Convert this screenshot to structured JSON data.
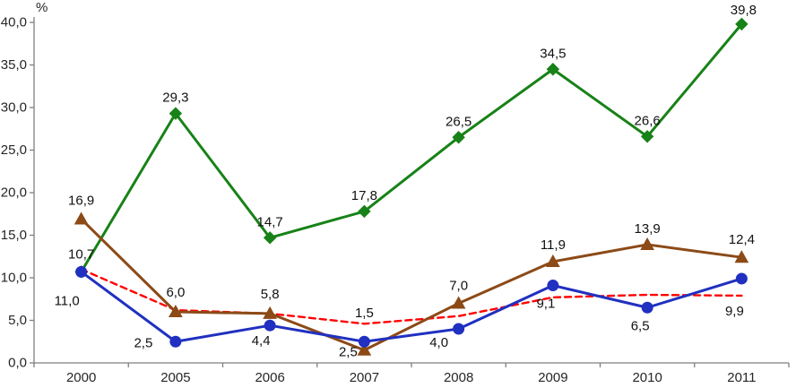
{
  "chart_data": {
    "type": "line",
    "title": "",
    "xlabel": "",
    "ylabel": "%",
    "ylim": [
      0,
      40
    ],
    "ytick_step": 5,
    "ytick_labels": [
      "0,0",
      "5,0",
      "10,0",
      "15,0",
      "20,0",
      "25,0",
      "30,0",
      "35,0",
      "40,0"
    ],
    "grid": false,
    "legend": "none",
    "decimal_separator": ",",
    "categories": [
      "2000",
      "2005",
      "2006",
      "2007",
      "2008",
      "2009",
      "2010",
      "2011"
    ],
    "series": [
      {
        "name": "red-dashed-trend-line",
        "color": "#FF0000",
        "marker": "none",
        "line": "dashed",
        "width": 2.4,
        "values": [
          11.0,
          6.2,
          5.8,
          4.6,
          5.5,
          7.7,
          8.0,
          7.9
        ],
        "labels": [
          "11,0",
          null,
          null,
          null,
          null,
          null,
          null,
          null
        ],
        "label_offsets": [
          [
            -16,
            40
          ],
          null,
          null,
          null,
          null,
          null,
          null,
          null
        ]
      },
      {
        "name": "green-diamond-series",
        "color": "#178217",
        "marker": "diamond",
        "line": "solid",
        "width": 3,
        "values": [
          10.7,
          29.3,
          14.7,
          17.8,
          26.5,
          34.5,
          26.6,
          39.8
        ],
        "labels": [
          null,
          "29,3",
          "14,7",
          "17,8",
          "26,5",
          "34,5",
          "26,6",
          "39,8"
        ],
        "label_offsets": [
          null,
          [
            0,
            -13
          ],
          [
            0,
            -13
          ],
          [
            0,
            -13
          ],
          [
            0,
            -13
          ],
          [
            0,
            -13
          ],
          [
            0,
            -13
          ],
          [
            2,
            -11
          ]
        ]
      },
      {
        "name": "brown-triangle-series",
        "color": "#8C4A17",
        "marker": "triangle",
        "line": "solid",
        "width": 3,
        "values": [
          16.9,
          6.0,
          5.8,
          1.5,
          7.0,
          11.9,
          13.9,
          12.4
        ],
        "labels": [
          "16,9",
          "6,0",
          "5,8",
          "1,5",
          "7,0",
          "11,9",
          "13,9",
          "12,4"
        ],
        "label_offsets": [
          [
            0,
            -16
          ],
          [
            0,
            -17
          ],
          [
            0,
            -17
          ],
          [
            0,
            -37
          ],
          [
            0,
            -15
          ],
          [
            0,
            -14
          ],
          [
            0,
            -13
          ],
          [
            0,
            -15
          ]
        ]
      },
      {
        "name": "blue-circle-series",
        "color": "#2030C0",
        "marker": "circle",
        "line": "solid",
        "width": 3,
        "values": [
          10.7,
          2.5,
          4.4,
          2.5,
          4.0,
          9.1,
          6.5,
          9.9
        ],
        "labels": [
          "10,7",
          "2,5",
          "4,4",
          "2,5",
          "4,0",
          "9,1",
          "6,5",
          "9,9"
        ],
        "label_offsets": [
          [
            0,
            -15
          ],
          [
            -36,
            6
          ],
          [
            -10,
            22
          ],
          [
            -18,
            16
          ],
          [
            -22,
            20
          ],
          [
            -8,
            25
          ],
          [
            -8,
            25
          ],
          [
            -8,
            41
          ]
        ]
      }
    ]
  }
}
